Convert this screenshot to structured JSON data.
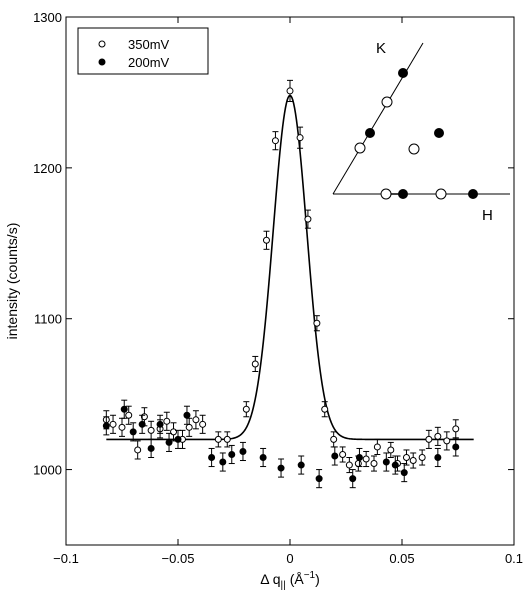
{
  "chart_data": {
    "type": "scatter",
    "xlabel_prefix": "Δ q",
    "xlabel_sub": "||",
    "xlabel_unit": "(Å",
    "xlabel_sup": "−1",
    "xlabel_close": ")",
    "ylabel": "intensity (counts/s)",
    "xlim": [
      -0.1,
      0.1
    ],
    "ylim": [
      950,
      1300
    ],
    "xticks": [
      -0.1,
      -0.05,
      0,
      0.05,
      0.1
    ],
    "xtick_labels": [
      "−0.1",
      "−0.05",
      "0",
      "0.05",
      "0.1"
    ],
    "yticks": [
      1000,
      1100,
      1200,
      1300
    ],
    "ytick_labels": [
      "1000",
      "1100",
      "1200",
      "1300"
    ],
    "legend_position": "top-left",
    "series": [
      {
        "name": "350mV",
        "marker": "open-circle",
        "points": [
          {
            "x": -0.082,
            "y": 1033,
            "err": 6
          },
          {
            "x": -0.079,
            "y": 1030,
            "err": 6
          },
          {
            "x": -0.075,
            "y": 1028,
            "err": 6
          },
          {
            "x": -0.072,
            "y": 1036,
            "err": 6
          },
          {
            "x": -0.068,
            "y": 1013,
            "err": 6
          },
          {
            "x": -0.065,
            "y": 1035,
            "err": 6
          },
          {
            "x": -0.062,
            "y": 1026,
            "err": 6
          },
          {
            "x": -0.058,
            "y": 1027,
            "err": 6
          },
          {
            "x": -0.055,
            "y": 1032,
            "err": 6
          },
          {
            "x": -0.052,
            "y": 1025,
            "err": 6
          },
          {
            "x": -0.048,
            "y": 1020,
            "err": 6
          },
          {
            "x": -0.045,
            "y": 1028,
            "err": 6
          },
          {
            "x": -0.042,
            "y": 1033,
            "err": 6
          },
          {
            "x": -0.039,
            "y": 1030,
            "err": 6
          },
          {
            "x": -0.032,
            "y": 1020,
            "err": 5
          },
          {
            "x": -0.028,
            "y": 1020,
            "err": 5
          },
          {
            "x": -0.0195,
            "y": 1040,
            "err": 5
          },
          {
            "x": -0.0155,
            "y": 1070,
            "err": 5
          },
          {
            "x": -0.0105,
            "y": 1152,
            "err": 6
          },
          {
            "x": -0.0065,
            "y": 1218,
            "err": 6
          },
          {
            "x": 0.0,
            "y": 1251,
            "err": 7
          },
          {
            "x": 0.0045,
            "y": 1220,
            "err": 7
          },
          {
            "x": 0.008,
            "y": 1166,
            "err": 6
          },
          {
            "x": 0.012,
            "y": 1097,
            "err": 5
          },
          {
            "x": 0.0155,
            "y": 1040,
            "err": 5
          },
          {
            "x": 0.0195,
            "y": 1020,
            "err": 5
          },
          {
            "x": 0.0235,
            "y": 1010,
            "err": 5
          },
          {
            "x": 0.0265,
            "y": 1003,
            "err": 5
          },
          {
            "x": 0.0305,
            "y": 1004,
            "err": 5
          },
          {
            "x": 0.034,
            "y": 1007,
            "err": 5
          },
          {
            "x": 0.0375,
            "y": 1004,
            "err": 5
          },
          {
            "x": 0.039,
            "y": 1015,
            "err": 5
          },
          {
            "x": 0.045,
            "y": 1013,
            "err": 5
          },
          {
            "x": 0.048,
            "y": 1004,
            "err": 5
          },
          {
            "x": 0.052,
            "y": 1008,
            "err": 5
          },
          {
            "x": 0.055,
            "y": 1006,
            "err": 5
          },
          {
            "x": 0.059,
            "y": 1008,
            "err": 5
          },
          {
            "x": 0.062,
            "y": 1020,
            "err": 6
          },
          {
            "x": 0.066,
            "y": 1022,
            "err": 6
          },
          {
            "x": 0.07,
            "y": 1019,
            "err": 6
          },
          {
            "x": 0.074,
            "y": 1027,
            "err": 6
          }
        ]
      },
      {
        "name": "200mV",
        "marker": "filled-circle",
        "points": [
          {
            "x": -0.082,
            "y": 1029,
            "err": 6
          },
          {
            "x": -0.074,
            "y": 1040,
            "err": 6
          },
          {
            "x": -0.07,
            "y": 1025,
            "err": 6
          },
          {
            "x": -0.066,
            "y": 1030,
            "err": 6
          },
          {
            "x": -0.062,
            "y": 1014,
            "err": 6
          },
          {
            "x": -0.058,
            "y": 1030,
            "err": 6
          },
          {
            "x": -0.054,
            "y": 1018,
            "err": 6
          },
          {
            "x": -0.05,
            "y": 1020,
            "err": 6
          },
          {
            "x": -0.046,
            "y": 1036,
            "err": 6
          },
          {
            "x": -0.035,
            "y": 1008,
            "err": 6
          },
          {
            "x": -0.03,
            "y": 1005,
            "err": 6
          },
          {
            "x": -0.026,
            "y": 1010,
            "err": 6
          },
          {
            "x": -0.021,
            "y": 1012,
            "err": 6
          },
          {
            "x": -0.012,
            "y": 1008,
            "err": 6
          },
          {
            "x": -0.004,
            "y": 1001,
            "err": 6
          },
          {
            "x": 0.005,
            "y": 1003,
            "err": 6
          },
          {
            "x": 0.013,
            "y": 994,
            "err": 6
          },
          {
            "x": 0.02,
            "y": 1009,
            "err": 6
          },
          {
            "x": 0.028,
            "y": 994,
            "err": 6
          },
          {
            "x": 0.031,
            "y": 1008,
            "err": 6
          },
          {
            "x": 0.043,
            "y": 1005,
            "err": 6
          },
          {
            "x": 0.047,
            "y": 1003,
            "err": 6
          },
          {
            "x": 0.051,
            "y": 998,
            "err": 6
          },
          {
            "x": 0.066,
            "y": 1008,
            "err": 6
          },
          {
            "x": 0.074,
            "y": 1015,
            "err": 6
          }
        ]
      }
    ],
    "fit_line": {
      "style": "solid",
      "baseline": 1020,
      "peak_center": 0.0,
      "peak_amplitude": 228,
      "peak_sigma": 0.0075,
      "x_range": [
        -0.082,
        0.082
      ]
    },
    "inset": {
      "axis_labels": [
        "K",
        "H"
      ],
      "description_open_points": 5,
      "description_filled_points": 5
    }
  }
}
